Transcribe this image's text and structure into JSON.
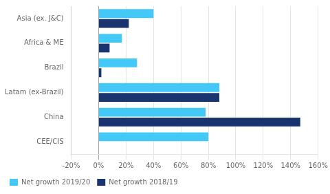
{
  "chart_data": {
    "type": "bar",
    "orientation": "horizontal",
    "categories": [
      "Asia (ex. J&C)",
      "Africa & ME",
      "Brazil",
      "Latam (ex-Brazil)",
      "China",
      "CEE/CIS"
    ],
    "series": [
      {
        "name": "Net growth 2019/20",
        "color": "#44c8f5",
        "values": [
          40,
          17,
          28,
          88,
          78,
          80
        ]
      },
      {
        "name": "Net growth 2018/19",
        "color": "#1a3470",
        "values": [
          22,
          8,
          2,
          88,
          147,
          0
        ]
      }
    ],
    "xlim": [
      -20,
      160
    ],
    "xticks": [
      {
        "value": -20,
        "label": "-20%"
      },
      {
        "value": 0,
        "label": "0%"
      },
      {
        "value": 20,
        "label": "20%"
      },
      {
        "value": 40,
        "label": "40%"
      },
      {
        "value": 60,
        "label": "60%"
      },
      {
        "value": 80,
        "label": "80%"
      },
      {
        "value": 100,
        "label": "100%"
      },
      {
        "value": 120,
        "label": "120%"
      },
      {
        "value": 140,
        "label": "140%"
      },
      {
        "value": 160,
        "label": "160%"
      }
    ],
    "grid": true,
    "legend": "lower left"
  }
}
